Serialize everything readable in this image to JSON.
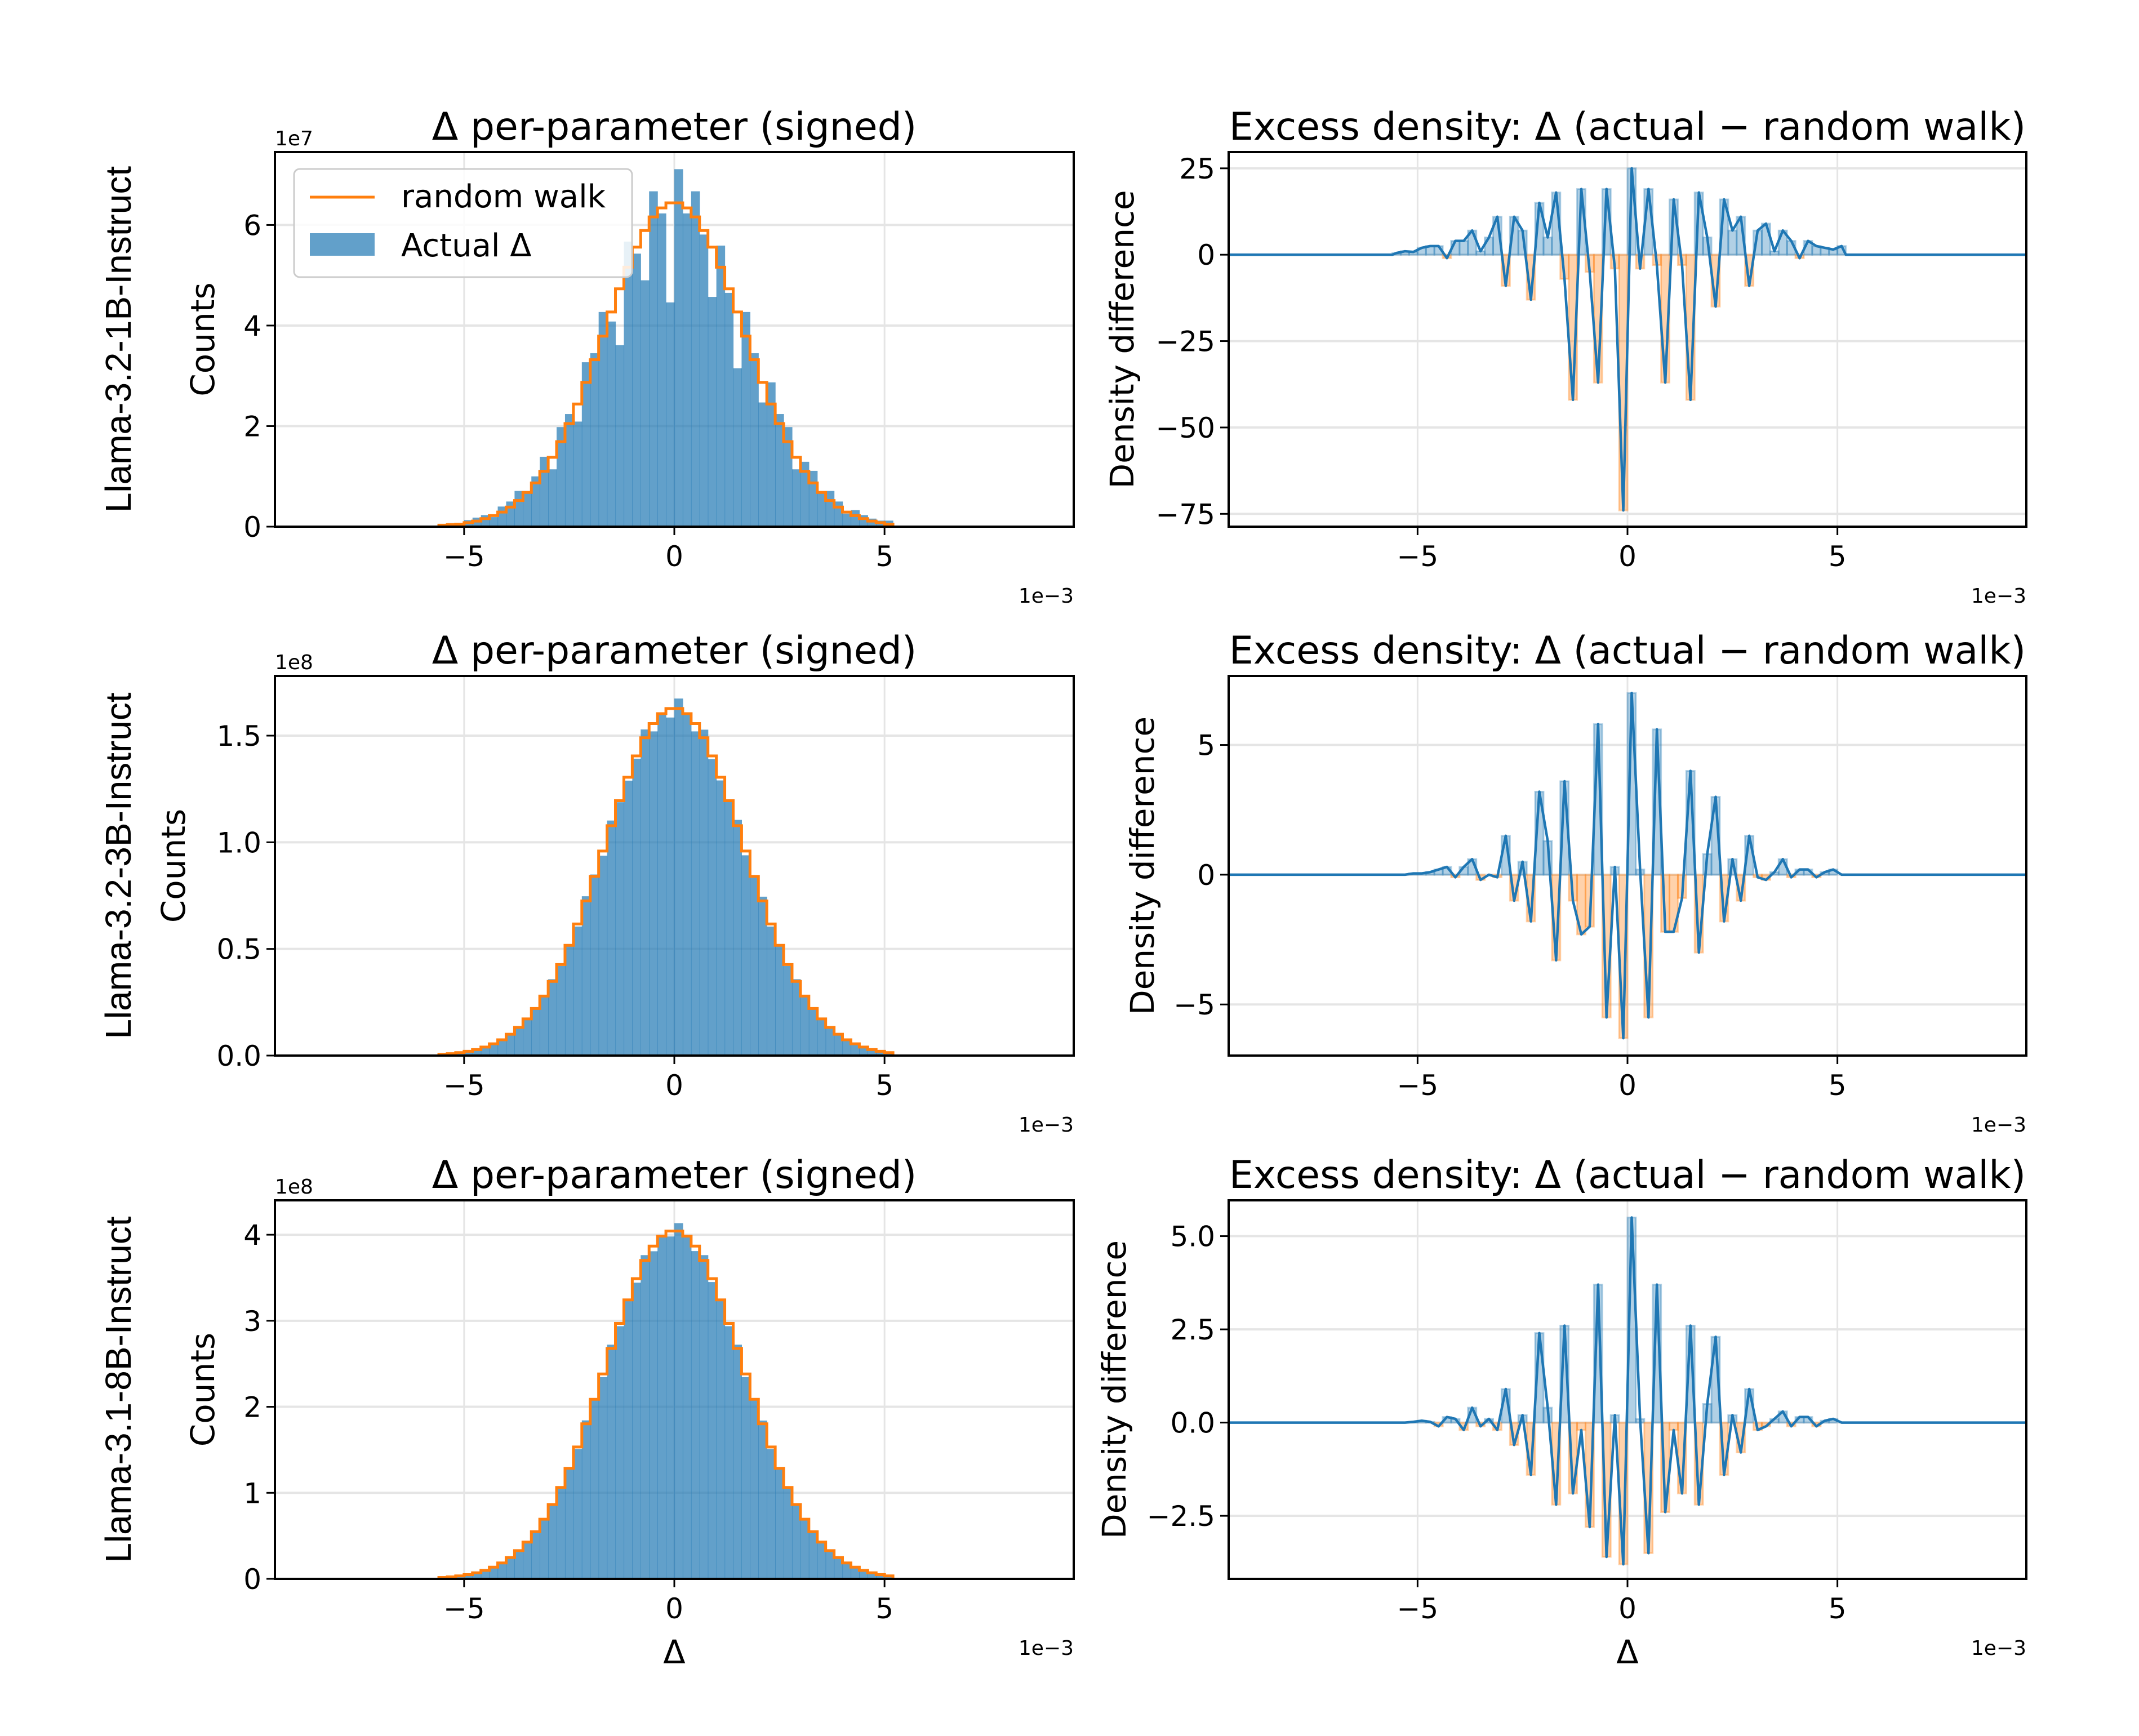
{
  "rows": [
    {
      "label": "Llama-3.2-1B-Instruct"
    },
    {
      "label": "Llama-3.2-3B-Instruct"
    },
    {
      "label": "Llama-3.1-8B-Instruct"
    }
  ],
  "colors": {
    "actual": "#1f77b4",
    "random_walk": "#ff7f0e",
    "positive_fill": "#1f77b4",
    "negative_fill": "#ff7f0e",
    "grid": "#e5e5e5"
  },
  "chart_data": [
    {
      "type": "bar",
      "row": 0,
      "title": "Δ per-parameter (signed)",
      "xlabel": "",
      "ylabel": "Counts",
      "y_offset_text": "1e7",
      "x_offset_text": "1e−3",
      "xlim": [
        -9.5,
        9.5
      ],
      "ylim": [
        0,
        7.45
      ],
      "grid": true,
      "xticks": [
        -5,
        0,
        5
      ],
      "xtick_labels": [
        "−5",
        "0",
        "5"
      ],
      "yticks": [
        0,
        2,
        4,
        6
      ],
      "ytick_labels": [
        "0",
        "2",
        "4",
        "6"
      ],
      "legend": {
        "placement": "upper left",
        "entries": [
          "random walk",
          "Actual Δ"
        ]
      },
      "bin_width": 0.2,
      "x": [
        -5.5,
        -5.3,
        -5.1,
        -4.9,
        -4.7,
        -4.5,
        -4.3,
        -4.1,
        -3.9,
        -3.7,
        -3.5,
        -3.3,
        -3.1,
        -2.9,
        -2.7,
        -2.5,
        -2.3,
        -2.1,
        -1.9,
        -1.7,
        -1.5,
        -1.3,
        -1.1,
        -0.9,
        -0.7,
        -0.5,
        -0.3,
        -0.1,
        0.1,
        0.3,
        0.5,
        0.7,
        0.9,
        1.1,
        1.3,
        1.5,
        1.7,
        1.9,
        2.1,
        2.3,
        2.5,
        2.7,
        2.9,
        3.1,
        3.3,
        3.5,
        3.7,
        3.9,
        4.1,
        4.3,
        4.5,
        4.7,
        4.9,
        5.1
      ],
      "series": [
        {
          "name": "random walk",
          "kind": "step",
          "values": [
            0.03,
            0.04,
            0.05,
            0.08,
            0.11,
            0.16,
            0.22,
            0.29,
            0.39,
            0.52,
            0.68,
            0.87,
            1.1,
            1.38,
            1.69,
            2.05,
            2.44,
            2.87,
            3.32,
            3.79,
            4.27,
            4.73,
            5.16,
            5.56,
            5.89,
            6.16,
            6.34,
            6.44,
            6.44,
            6.34,
            6.16,
            5.89,
            5.56,
            5.16,
            4.73,
            4.27,
            3.79,
            3.32,
            2.87,
            2.44,
            2.05,
            1.69,
            1.38,
            1.1,
            0.87,
            0.68,
            0.52,
            0.39,
            0.29,
            0.22,
            0.16,
            0.11,
            0.08,
            0.05
          ]
        },
        {
          "name": "Actual Δ",
          "kind": "bar",
          "values": [
            0.04,
            0.07,
            0.07,
            0.13,
            0.18,
            0.23,
            0.19,
            0.4,
            0.5,
            0.71,
            0.71,
            1.0,
            1.39,
            1.14,
            1.98,
            2.24,
            2.09,
            3.27,
            3.45,
            4.27,
            4.08,
            3.61,
            5.67,
            5.43,
            4.9,
            6.67,
            6.23,
            4.46,
            7.11,
            6.23,
            6.67,
            5.81,
            4.57,
            5.59,
            4.65,
            3.15,
            4.27,
            3.45,
            2.47,
            2.87,
            2.24,
            1.98,
            1.14,
            1.29,
            1.11,
            0.71,
            0.71,
            0.5,
            0.26,
            0.33,
            0.23,
            0.16,
            0.12,
            0.12
          ]
        }
      ]
    },
    {
      "type": "area",
      "row": 0,
      "title": "Excess density: Δ (actual − random walk)",
      "xlabel": "",
      "ylabel": "Density difference",
      "x_offset_text": "1e−3",
      "xlim": [
        -9.5,
        9.5
      ],
      "ylim": [
        -78.7,
        29.7
      ],
      "grid": true,
      "xticks": [
        -5,
        0,
        5
      ],
      "xtick_labels": [
        "−5",
        "0",
        "5"
      ],
      "yticks": [
        25,
        0,
        -25,
        -50,
        -75
      ],
      "ytick_labels": [
        "25",
        "0",
        "−25",
        "−50",
        "−75"
      ],
      "bin_width": 0.2,
      "x": [
        -5.5,
        -5.3,
        -5.1,
        -4.9,
        -4.7,
        -4.5,
        -4.3,
        -4.1,
        -3.9,
        -3.7,
        -3.5,
        -3.3,
        -3.1,
        -2.9,
        -2.7,
        -2.5,
        -2.3,
        -2.1,
        -1.9,
        -1.7,
        -1.5,
        -1.3,
        -1.1,
        -0.9,
        -0.7,
        -0.5,
        -0.3,
        -0.1,
        0.1,
        0.3,
        0.5,
        0.7,
        0.9,
        1.1,
        1.3,
        1.5,
        1.7,
        1.9,
        2.1,
        2.3,
        2.5,
        2.7,
        2.9,
        3.1,
        3.3,
        3.5,
        3.7,
        3.9,
        4.1,
        4.3,
        4.5,
        4.7,
        4.9,
        5.1
      ],
      "values": [
        0.5,
        1,
        0.8,
        2,
        2.5,
        2.5,
        -1,
        4,
        4,
        7,
        1,
        5,
        11,
        -9,
        11,
        7,
        -13,
        15,
        5,
        18,
        -7,
        -42,
        19,
        -5,
        -37,
        19,
        -4,
        -74,
        25,
        -4,
        19,
        -3,
        -37,
        16,
        -3,
        -42,
        18,
        5,
        -15,
        16,
        7,
        11,
        -9,
        7,
        9,
        1,
        7,
        4,
        -1,
        4,
        2.5,
        2,
        1.5,
        2.5
      ]
    },
    {
      "type": "bar",
      "row": 1,
      "title": "Δ per-parameter (signed)",
      "xlabel": "",
      "ylabel": "Counts",
      "y_offset_text": "1e8",
      "x_offset_text": "1e−3",
      "xlim": [
        -9.5,
        9.5
      ],
      "ylim": [
        0,
        1.78
      ],
      "grid": true,
      "xticks": [
        -5,
        0,
        5
      ],
      "xtick_labels": [
        "−5",
        "0",
        "5"
      ],
      "yticks": [
        0,
        0.5,
        1.0,
        1.5
      ],
      "ytick_labels": [
        "0.0",
        "0.5",
        "1.0",
        "1.5"
      ],
      "bin_width": 0.2,
      "x": [
        -5.5,
        -5.3,
        -5.1,
        -4.9,
        -4.7,
        -4.5,
        -4.3,
        -4.1,
        -3.9,
        -3.7,
        -3.5,
        -3.3,
        -3.1,
        -2.9,
        -2.7,
        -2.5,
        -2.3,
        -2.1,
        -1.9,
        -1.7,
        -1.5,
        -1.3,
        -1.1,
        -0.9,
        -0.7,
        -0.5,
        -0.3,
        -0.1,
        0.1,
        0.3,
        0.5,
        0.7,
        0.9,
        1.1,
        1.3,
        1.5,
        1.7,
        1.9,
        2.1,
        2.3,
        2.5,
        2.7,
        2.9,
        3.1,
        3.3,
        3.5,
        3.7,
        3.9,
        4.1,
        4.3,
        4.5,
        4.7,
        4.9,
        5.1
      ],
      "series": [
        {
          "name": "random walk",
          "kind": "step",
          "values": [
            0.006,
            0.009,
            0.014,
            0.02,
            0.028,
            0.04,
            0.055,
            0.074,
            0.1,
            0.132,
            0.172,
            0.221,
            0.279,
            0.348,
            0.427,
            0.517,
            0.617,
            0.725,
            0.84,
            0.959,
            1.078,
            1.195,
            1.305,
            1.405,
            1.49,
            1.557,
            1.603,
            1.627,
            1.627,
            1.603,
            1.557,
            1.49,
            1.405,
            1.305,
            1.195,
            1.078,
            0.959,
            0.84,
            0.725,
            0.617,
            0.517,
            0.427,
            0.348,
            0.279,
            0.221,
            0.172,
            0.132,
            0.1,
            0.074,
            0.055,
            0.04,
            0.028,
            0.02,
            0.014
          ]
        },
        {
          "name": "Actual Δ",
          "kind": "bar",
          "values": [
            0.006,
            0.009,
            0.014,
            0.02,
            0.029,
            0.041,
            0.057,
            0.073,
            0.102,
            0.136,
            0.171,
            0.221,
            0.278,
            0.358,
            0.42,
            0.52,
            0.605,
            0.747,
            0.849,
            0.937,
            1.102,
            1.188,
            1.289,
            1.392,
            1.529,
            1.52,
            1.605,
            1.585,
            1.674,
            1.604,
            1.52,
            1.528,
            1.39,
            1.29,
            1.189,
            1.105,
            0.939,
            0.845,
            0.745,
            0.605,
            0.521,
            0.42,
            0.358,
            0.278,
            0.22,
            0.173,
            0.136,
            0.099,
            0.075,
            0.056,
            0.04,
            0.029,
            0.021,
            0.014
          ]
        }
      ]
    },
    {
      "type": "area",
      "row": 1,
      "title": "Excess density: Δ (actual − random walk)",
      "xlabel": "",
      "ylabel": "Density difference",
      "x_offset_text": "1e−3",
      "xlim": [
        -9.5,
        9.5
      ],
      "ylim": [
        -6.97,
        7.66
      ],
      "grid": true,
      "xticks": [
        -5,
        0,
        5
      ],
      "xtick_labels": [
        "−5",
        "0",
        "5"
      ],
      "yticks": [
        5,
        0,
        -5
      ],
      "ytick_labels": [
        "5",
        "0",
        "−5"
      ],
      "bin_width": 0.2,
      "x": [
        -5.5,
        -5.3,
        -5.1,
        -4.9,
        -4.7,
        -4.5,
        -4.3,
        -4.1,
        -3.9,
        -3.7,
        -3.5,
        -3.3,
        -3.1,
        -2.9,
        -2.7,
        -2.5,
        -2.3,
        -2.1,
        -1.9,
        -1.7,
        -1.5,
        -1.3,
        -1.1,
        -0.9,
        -0.7,
        -0.5,
        -0.3,
        -0.1,
        0.1,
        0.3,
        0.5,
        0.7,
        0.9,
        1.1,
        1.3,
        1.5,
        1.7,
        1.9,
        2.1,
        2.3,
        2.5,
        2.7,
        2.9,
        3.1,
        3.3,
        3.5,
        3.7,
        3.9,
        4.1,
        4.3,
        4.5,
        4.7,
        4.9,
        5.1
      ],
      "values": [
        0,
        0,
        0.05,
        0.05,
        0.1,
        0.2,
        0.3,
        -0.1,
        0.3,
        0.6,
        -0.2,
        0,
        -0.1,
        1.5,
        -1.0,
        0.5,
        -1.8,
        3.2,
        1.3,
        -3.3,
        3.6,
        -1.0,
        -2.3,
        -2.0,
        5.8,
        -5.5,
        0.3,
        -6.3,
        7.0,
        0.2,
        -5.5,
        5.6,
        -2.2,
        -2.2,
        -0.9,
        4.0,
        -3.0,
        0.8,
        3.0,
        -1.8,
        0.6,
        -1.0,
        1.5,
        -0.1,
        -0.2,
        0.1,
        0.6,
        -0.1,
        0.2,
        0.2,
        -0.1,
        0.1,
        0.2,
        0
      ]
    },
    {
      "type": "bar",
      "row": 2,
      "title": "Δ per-parameter (signed)",
      "xlabel": "Δ",
      "ylabel": "Counts",
      "y_offset_text": "1e8",
      "x_offset_text": "1e−3",
      "xlim": [
        -9.5,
        9.5
      ],
      "ylim": [
        0,
        4.4
      ],
      "grid": true,
      "xticks": [
        -5,
        0,
        5
      ],
      "xtick_labels": [
        "−5",
        "0",
        "5"
      ],
      "yticks": [
        0,
        1,
        2,
        3,
        4
      ],
      "ytick_labels": [
        "0",
        "1",
        "2",
        "3",
        "4"
      ],
      "bin_width": 0.2,
      "x": [
        -5.5,
        -5.3,
        -5.1,
        -4.9,
        -4.7,
        -4.5,
        -4.3,
        -4.1,
        -3.9,
        -3.7,
        -3.5,
        -3.3,
        -3.1,
        -2.9,
        -2.7,
        -2.5,
        -2.3,
        -2.1,
        -1.9,
        -1.7,
        -1.5,
        -1.3,
        -1.1,
        -0.9,
        -0.7,
        -0.5,
        -0.3,
        -0.1,
        0.1,
        0.3,
        0.5,
        0.7,
        0.9,
        1.1,
        1.3,
        1.5,
        1.7,
        1.9,
        2.1,
        2.3,
        2.5,
        2.7,
        2.9,
        3.1,
        3.3,
        3.5,
        3.7,
        3.9,
        4.1,
        4.3,
        4.5,
        4.7,
        4.9,
        5.1
      ],
      "series": [
        {
          "name": "random walk",
          "kind": "step",
          "values": [
            0.016,
            0.023,
            0.034,
            0.049,
            0.07,
            0.098,
            0.136,
            0.185,
            0.248,
            0.328,
            0.427,
            0.548,
            0.693,
            0.864,
            1.062,
            1.285,
            1.533,
            1.802,
            2.087,
            2.382,
            2.679,
            2.969,
            3.243,
            3.49,
            3.701,
            3.868,
            3.984,
            4.043,
            4.043,
            3.984,
            3.868,
            3.701,
            3.49,
            3.243,
            2.969,
            2.679,
            2.382,
            2.087,
            1.802,
            1.533,
            1.285,
            1.062,
            0.864,
            0.693,
            0.548,
            0.427,
            0.328,
            0.248,
            0.185,
            0.136,
            0.098,
            0.07,
            0.049,
            0.034
          ]
        },
        {
          "name": "Actual Δ",
          "kind": "bar",
          "values": [
            0.016,
            0.023,
            0.034,
            0.05,
            0.07,
            0.096,
            0.139,
            0.187,
            0.245,
            0.335,
            0.425,
            0.55,
            0.69,
            0.879,
            1.052,
            1.288,
            1.51,
            1.842,
            2.094,
            2.345,
            2.722,
            2.937,
            3.24,
            3.443,
            3.763,
            3.808,
            3.987,
            3.98,
            4.135,
            3.986,
            3.81,
            3.763,
            3.45,
            3.24,
            2.937,
            2.722,
            2.345,
            2.095,
            1.84,
            1.51,
            1.288,
            1.049,
            0.879,
            0.69,
            0.546,
            0.429,
            0.333,
            0.246,
            0.188,
            0.138,
            0.096,
            0.071,
            0.05,
            0.034
          ]
        }
      ]
    },
    {
      "type": "area",
      "row": 2,
      "title": "Excess density: Δ (actual − random walk)",
      "xlabel": "Δ",
      "ylabel": "Density difference",
      "x_offset_text": "1e−3",
      "xlim": [
        -9.5,
        9.5
      ],
      "ylim": [
        -4.19,
        5.96
      ],
      "grid": true,
      "xticks": [
        -5,
        0,
        5
      ],
      "xtick_labels": [
        "−5",
        "0",
        "5"
      ],
      "yticks": [
        5.0,
        2.5,
        0.0,
        -2.5
      ],
      "ytick_labels": [
        "5.0",
        "2.5",
        "0.0",
        "−2.5"
      ],
      "bin_width": 0.2,
      "x": [
        -5.5,
        -5.3,
        -5.1,
        -4.9,
        -4.7,
        -4.5,
        -4.3,
        -4.1,
        -3.9,
        -3.7,
        -3.5,
        -3.3,
        -3.1,
        -2.9,
        -2.7,
        -2.5,
        -2.3,
        -2.1,
        -1.9,
        -1.7,
        -1.5,
        -1.3,
        -1.1,
        -0.9,
        -0.7,
        -0.5,
        -0.3,
        -0.1,
        0.1,
        0.3,
        0.5,
        0.7,
        0.9,
        1.1,
        1.3,
        1.5,
        1.7,
        1.9,
        2.1,
        2.3,
        2.5,
        2.7,
        2.9,
        3.1,
        3.3,
        3.5,
        3.7,
        3.9,
        4.1,
        4.3,
        4.5,
        4.7,
        4.9,
        5.1
      ],
      "values": [
        0,
        0,
        0.02,
        0.05,
        0.02,
        -0.1,
        0.15,
        0.1,
        -0.2,
        0.4,
        -0.1,
        0.1,
        -0.2,
        0.9,
        -0.6,
        0.2,
        -1.4,
        2.4,
        0.4,
        -2.2,
        2.6,
        -1.9,
        -0.2,
        -2.8,
        3.7,
        -3.6,
        0.2,
        -3.8,
        5.5,
        0.1,
        -3.5,
        3.7,
        -2.4,
        -0.2,
        -1.9,
        2.6,
        -2.2,
        0.5,
        2.3,
        -1.4,
        0.2,
        -0.8,
        0.9,
        -0.2,
        -0.1,
        0.1,
        0.3,
        -0.1,
        0.15,
        0.15,
        -0.1,
        0.05,
        0.1,
        0
      ]
    }
  ]
}
